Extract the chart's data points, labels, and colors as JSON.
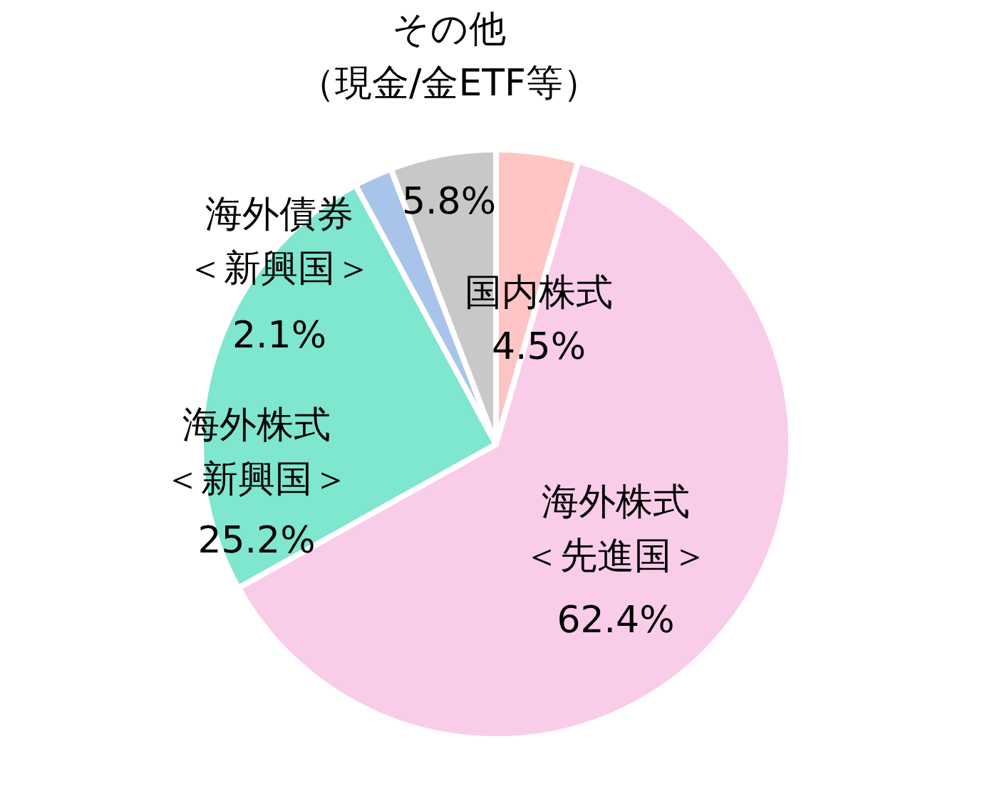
{
  "chart_data": {
    "type": "pie",
    "categories": [
      "国内株式",
      "海外株式＜先進国＞",
      "海外株式＜新興国＞",
      "海外債券＜新興国＞",
      "その他（現金/金ETF等）"
    ],
    "values": [
      4.5,
      62.4,
      25.2,
      2.1,
      5.8
    ],
    "colors": [
      "#ffc4c4",
      "#f9cdea",
      "#7fe6cf",
      "#a8c4ea",
      "#c8c8c8"
    ],
    "value_labels": [
      "4.5%",
      "62.4%",
      "25.2%",
      "2.1%",
      "5.8%"
    ]
  }
}
